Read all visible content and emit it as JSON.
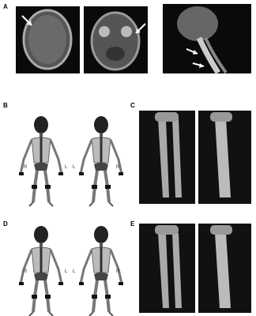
{
  "panels": [
    {
      "label": "A"
    },
    {
      "label": "B",
      "side_labels": [
        "R",
        "L",
        "L",
        "R"
      ]
    },
    {
      "label": "C"
    },
    {
      "label": "D",
      "side_labels": [
        "R",
        "L",
        "L",
        "R"
      ]
    },
    {
      "label": "E"
    }
  ]
}
